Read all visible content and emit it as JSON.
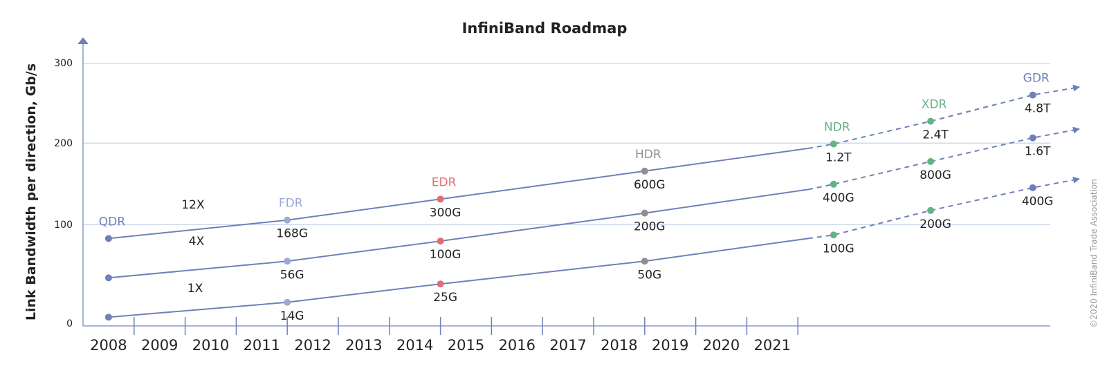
{
  "chart_data": {
    "type": "line",
    "title": "InfiniBand Roadmap",
    "xlabel": "",
    "ylabel": "Link Bandwidth per direction, Gb/s",
    "y_ticks": [
      "300",
      "200",
      "100",
      "0"
    ],
    "x_ticks": [
      "2008",
      "2009",
      "2010",
      "2011",
      "2012",
      "2013",
      "2014",
      "2015",
      "2016",
      "2017",
      "2018",
      "2019",
      "2020",
      "2021"
    ],
    "grid": true,
    "copyright": "©2020 InfiniBand Trade Association",
    "colors": {
      "line": "#6f80b8",
      "axis": "#8a9acc",
      "grid": "#c5d3ea",
      "QDR": "#6f80b8",
      "FDR": "#9aaad4",
      "EDR": "#e56b74",
      "HDR": "#8f8f8f",
      "NDR": "#62b483",
      "XDR": "#62b483",
      "GDR": "#6f80b8"
    },
    "generations": [
      {
        "name": "QDR",
        "year": 2008.0,
        "color_key": "QDR"
      },
      {
        "name": "FDR",
        "year": 2011.5,
        "color_key": "FDR"
      },
      {
        "name": "EDR",
        "year": 2014.5,
        "color_key": "EDR"
      },
      {
        "name": "HDR",
        "year": 2018.5,
        "color_key": "HDR"
      },
      {
        "name": "NDR",
        "year": 2022.2,
        "color_key": "NDR"
      },
      {
        "name": "XDR",
        "year": 2024.1,
        "color_key": "XDR"
      },
      {
        "name": "GDR",
        "year": 2026.1,
        "color_key": "GDR"
      }
    ],
    "series": [
      {
        "name": "12X",
        "line_end_year": 2021.7,
        "line_end_y": 203,
        "arrow_end": [
          2027.0,
          273
        ],
        "points": [
          {
            "year": 2008.0,
            "y": 100,
            "label": ""
          },
          {
            "year": 2011.5,
            "y": 121,
            "label": "168G"
          },
          {
            "year": 2014.5,
            "y": 145,
            "label": "300G"
          },
          {
            "year": 2018.5,
            "y": 177,
            "label": "600G"
          },
          {
            "year": 2022.2,
            "y": 208,
            "label": "1.2T"
          },
          {
            "year": 2024.1,
            "y": 234,
            "label": "2.4T"
          },
          {
            "year": 2026.1,
            "y": 264,
            "label": "4.8T"
          }
        ]
      },
      {
        "name": "4X",
        "line_end_year": 2021.7,
        "line_end_y": 156,
        "arrow_end": [
          2027.0,
          225
        ],
        "points": [
          {
            "year": 2008.0,
            "y": 55,
            "label": ""
          },
          {
            "year": 2011.5,
            "y": 74,
            "label": "56G"
          },
          {
            "year": 2014.5,
            "y": 97,
            "label": "100G"
          },
          {
            "year": 2018.5,
            "y": 129,
            "label": "200G"
          },
          {
            "year": 2022.2,
            "y": 162,
            "label": "400G"
          },
          {
            "year": 2024.1,
            "y": 188,
            "label": "800G"
          },
          {
            "year": 2026.1,
            "y": 215,
            "label": "1.6T"
          }
        ]
      },
      {
        "name": "1X",
        "line_end_year": 2021.7,
        "line_end_y": 100,
        "arrow_end": [
          2027.0,
          168
        ],
        "points": [
          {
            "year": 2008.0,
            "y": 10,
            "label": ""
          },
          {
            "year": 2011.5,
            "y": 27,
            "label": "14G"
          },
          {
            "year": 2014.5,
            "y": 48,
            "label": "25G"
          },
          {
            "year": 2018.5,
            "y": 74,
            "label": "50G"
          },
          {
            "year": 2022.2,
            "y": 104,
            "label": "100G"
          },
          {
            "year": 2024.1,
            "y": 132,
            "label": "200G"
          },
          {
            "year": 2026.1,
            "y": 158,
            "label": "400G"
          }
        ]
      }
    ]
  }
}
